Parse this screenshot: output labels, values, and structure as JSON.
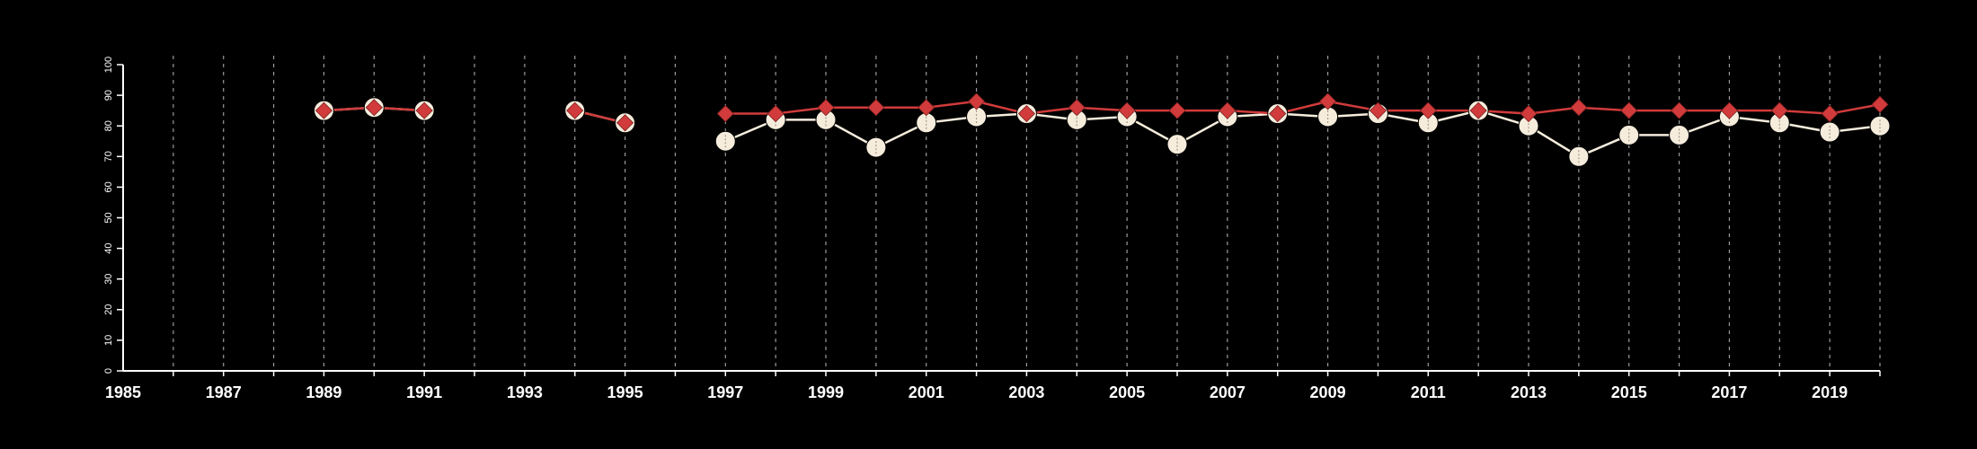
{
  "chart_data": {
    "type": "line",
    "title": "",
    "xlabel": "",
    "ylabel": "",
    "xlim": [
      1985,
      2020
    ],
    "ylim": [
      0,
      100
    ],
    "x_ticks": [
      "1985",
      "1987",
      "1989",
      "1991",
      "1993",
      "1995",
      "1997",
      "1999",
      "2001",
      "2003",
      "2005",
      "2007",
      "2009",
      "2011",
      "2013",
      "2015",
      "2017",
      "2019"
    ],
    "y_ticks": [
      "0",
      "10",
      "20",
      "30",
      "40",
      "50",
      "60",
      "70",
      "80",
      "90",
      "100"
    ],
    "grid": "vertical dashed lines at each year",
    "colors": {
      "background": "#000000",
      "axis": "#ffffff",
      "grid": "#9a9a9a",
      "series_1": "#f5ecdc",
      "series_2": "#d13b3b"
    },
    "series": [
      {
        "marker": "circle",
        "color": "#f5ecdc",
        "points": [
          {
            "x": 1989,
            "y": 85
          },
          {
            "x": 1990,
            "y": 86
          },
          {
            "x": 1991,
            "y": 85
          },
          {
            "x": 1994,
            "y": 85
          },
          {
            "x": 1995,
            "y": 81
          },
          {
            "x": 1997,
            "y": 75
          },
          {
            "x": 1998,
            "y": 82
          },
          {
            "x": 1999,
            "y": 82
          },
          {
            "x": 2000,
            "y": 73
          },
          {
            "x": 2001,
            "y": 81
          },
          {
            "x": 2002,
            "y": 83
          },
          {
            "x": 2003,
            "y": 84
          },
          {
            "x": 2004,
            "y": 82
          },
          {
            "x": 2005,
            "y": 83
          },
          {
            "x": 2006,
            "y": 74
          },
          {
            "x": 2007,
            "y": 83
          },
          {
            "x": 2008,
            "y": 84
          },
          {
            "x": 2009,
            "y": 83
          },
          {
            "x": 2010,
            "y": 84
          },
          {
            "x": 2011,
            "y": 81
          },
          {
            "x": 2012,
            "y": 85
          },
          {
            "x": 2013,
            "y": 80
          },
          {
            "x": 2014,
            "y": 70
          },
          {
            "x": 2015,
            "y": 77
          },
          {
            "x": 2016,
            "y": 77
          },
          {
            "x": 2017,
            "y": 83
          },
          {
            "x": 2018,
            "y": 81
          },
          {
            "x": 2019,
            "y": 78
          },
          {
            "x": 2020,
            "y": 80
          }
        ]
      },
      {
        "marker": "diamond",
        "color": "#d13b3b",
        "points": [
          {
            "x": 1989,
            "y": 85
          },
          {
            "x": 1990,
            "y": 86
          },
          {
            "x": 1991,
            "y": 85
          },
          {
            "x": 1994,
            "y": 85
          },
          {
            "x": 1995,
            "y": 81
          },
          {
            "x": 1997,
            "y": 84
          },
          {
            "x": 1998,
            "y": 84
          },
          {
            "x": 1999,
            "y": 86
          },
          {
            "x": 2000,
            "y": 86
          },
          {
            "x": 2001,
            "y": 86
          },
          {
            "x": 2002,
            "y": 88
          },
          {
            "x": 2003,
            "y": 84
          },
          {
            "x": 2004,
            "y": 86
          },
          {
            "x": 2005,
            "y": 85
          },
          {
            "x": 2006,
            "y": 85
          },
          {
            "x": 2007,
            "y": 85
          },
          {
            "x": 2008,
            "y": 84
          },
          {
            "x": 2009,
            "y": 88
          },
          {
            "x": 2010,
            "y": 85
          },
          {
            "x": 2011,
            "y": 85
          },
          {
            "x": 2012,
            "y": 85
          },
          {
            "x": 2013,
            "y": 84
          },
          {
            "x": 2014,
            "y": 86
          },
          {
            "x": 2015,
            "y": 85
          },
          {
            "x": 2016,
            "y": 85
          },
          {
            "x": 2017,
            "y": 85
          },
          {
            "x": 2018,
            "y": 85
          },
          {
            "x": 2019,
            "y": 84
          },
          {
            "x": 2020,
            "y": 87
          }
        ]
      }
    ]
  }
}
